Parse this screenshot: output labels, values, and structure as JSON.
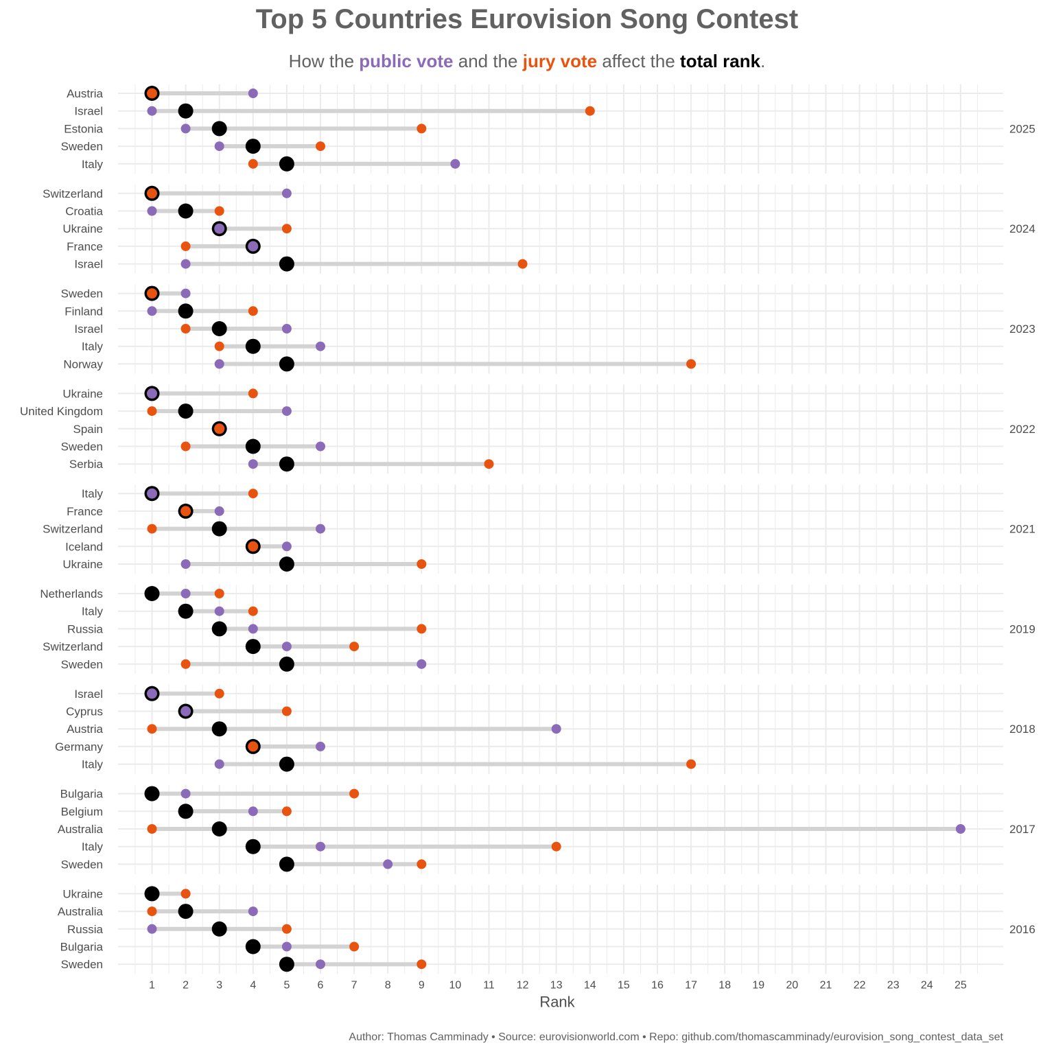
{
  "title": "Top 5 Countries Eurovision Song Contest",
  "subtitle": {
    "prefix": "How the ",
    "public": "public vote",
    "middle": " and the ",
    "jury": "jury vote",
    "middle2": " affect the ",
    "total": "total rank",
    "suffix": "."
  },
  "caption": "Author: Thomas Camminady • Source: eurovisionworld.com • Repo: github.com/thomascamminady/eurovision_song_contest_data_set",
  "colors": {
    "public": "#8B6BB8",
    "jury": "#E8540F",
    "total": "#000000",
    "segment": "#d3d3d3",
    "grid": "#ebebeb"
  },
  "chart_data": {
    "type": "dumbbell",
    "xlabel": "Rank",
    "xlim": [
      0,
      26
    ],
    "xticks": [
      1,
      2,
      3,
      4,
      5,
      6,
      7,
      8,
      9,
      10,
      11,
      12,
      13,
      14,
      15,
      16,
      17,
      18,
      19,
      20,
      21,
      22,
      23,
      24,
      25
    ],
    "legend": "none",
    "facets": [
      {
        "year": "2025",
        "rows": [
          {
            "country": "Austria",
            "total": 1,
            "public": 4,
            "jury": 1
          },
          {
            "country": "Israel",
            "total": 2,
            "public": 1,
            "jury": 14
          },
          {
            "country": "Estonia",
            "total": 3,
            "public": 2,
            "jury": 9
          },
          {
            "country": "Sweden",
            "total": 4,
            "public": 3,
            "jury": 6
          },
          {
            "country": "Italy",
            "total": 5,
            "public": 10,
            "jury": 4
          }
        ]
      },
      {
        "year": "2024",
        "rows": [
          {
            "country": "Switzerland",
            "total": 1,
            "public": 5,
            "jury": 1
          },
          {
            "country": "Croatia",
            "total": 2,
            "public": 1,
            "jury": 3
          },
          {
            "country": "Ukraine",
            "total": 3,
            "public": 3,
            "jury": 5
          },
          {
            "country": "France",
            "total": 4,
            "public": 4,
            "jury": 2
          },
          {
            "country": "Israel",
            "total": 5,
            "public": 2,
            "jury": 12
          }
        ]
      },
      {
        "year": "2023",
        "rows": [
          {
            "country": "Sweden",
            "total": 1,
            "public": 2,
            "jury": 1
          },
          {
            "country": "Finland",
            "total": 2,
            "public": 1,
            "jury": 4
          },
          {
            "country": "Israel",
            "total": 3,
            "public": 5,
            "jury": 2
          },
          {
            "country": "Italy",
            "total": 4,
            "public": 6,
            "jury": 3
          },
          {
            "country": "Norway",
            "total": 5,
            "public": 3,
            "jury": 17
          }
        ]
      },
      {
        "year": "2022",
        "rows": [
          {
            "country": "Ukraine",
            "total": 1,
            "public": 1,
            "jury": 4
          },
          {
            "country": "United Kingdom",
            "total": 2,
            "public": 5,
            "jury": 1
          },
          {
            "country": "Spain",
            "total": 3,
            "public": 3,
            "jury": 3
          },
          {
            "country": "Sweden",
            "total": 4,
            "public": 6,
            "jury": 2
          },
          {
            "country": "Serbia",
            "total": 5,
            "public": 4,
            "jury": 11
          }
        ]
      },
      {
        "year": "2021",
        "rows": [
          {
            "country": "Italy",
            "total": 1,
            "public": 1,
            "jury": 4
          },
          {
            "country": "France",
            "total": 2,
            "public": 3,
            "jury": 2
          },
          {
            "country": "Switzerland",
            "total": 3,
            "public": 6,
            "jury": 1
          },
          {
            "country": "Iceland",
            "total": 4,
            "public": 5,
            "jury": 4
          },
          {
            "country": "Ukraine",
            "total": 5,
            "public": 2,
            "jury": 9
          }
        ]
      },
      {
        "year": "2019",
        "rows": [
          {
            "country": "Netherlands",
            "total": 1,
            "public": 2,
            "jury": 3
          },
          {
            "country": "Italy",
            "total": 2,
            "public": 3,
            "jury": 4
          },
          {
            "country": "Russia",
            "total": 3,
            "public": 4,
            "jury": 9
          },
          {
            "country": "Switzerland",
            "total": 4,
            "public": 5,
            "jury": 7
          },
          {
            "country": "Sweden",
            "total": 5,
            "public": 9,
            "jury": 2
          }
        ]
      },
      {
        "year": "2018",
        "rows": [
          {
            "country": "Israel",
            "total": 1,
            "public": 1,
            "jury": 3
          },
          {
            "country": "Cyprus",
            "total": 2,
            "public": 2,
            "jury": 5
          },
          {
            "country": "Austria",
            "total": 3,
            "public": 13,
            "jury": 1
          },
          {
            "country": "Germany",
            "total": 4,
            "public": 6,
            "jury": 4
          },
          {
            "country": "Italy",
            "total": 5,
            "public": 3,
            "jury": 17
          }
        ]
      },
      {
        "year": "2017",
        "rows": [
          {
            "country": "Bulgaria",
            "total": 1,
            "public": 2,
            "jury": 7
          },
          {
            "country": "Belgium",
            "total": 2,
            "public": 4,
            "jury": 5
          },
          {
            "country": "Australia",
            "total": 3,
            "public": 25,
            "jury": 1
          },
          {
            "country": "Italy",
            "total": 4,
            "public": 6,
            "jury": 13
          },
          {
            "country": "Sweden",
            "total": 5,
            "public": 8,
            "jury": 9
          }
        ]
      },
      {
        "year": "2016",
        "rows": [
          {
            "country": "Ukraine",
            "total": 1,
            "public": 2,
            "jury": 2
          },
          {
            "country": "Australia",
            "total": 2,
            "public": 4,
            "jury": 1
          },
          {
            "country": "Russia",
            "total": 3,
            "public": 1,
            "jury": 5
          },
          {
            "country": "Bulgaria",
            "total": 4,
            "public": 5,
            "jury": 7
          },
          {
            "country": "Sweden",
            "total": 5,
            "public": 6,
            "jury": 9
          }
        ]
      }
    ]
  }
}
